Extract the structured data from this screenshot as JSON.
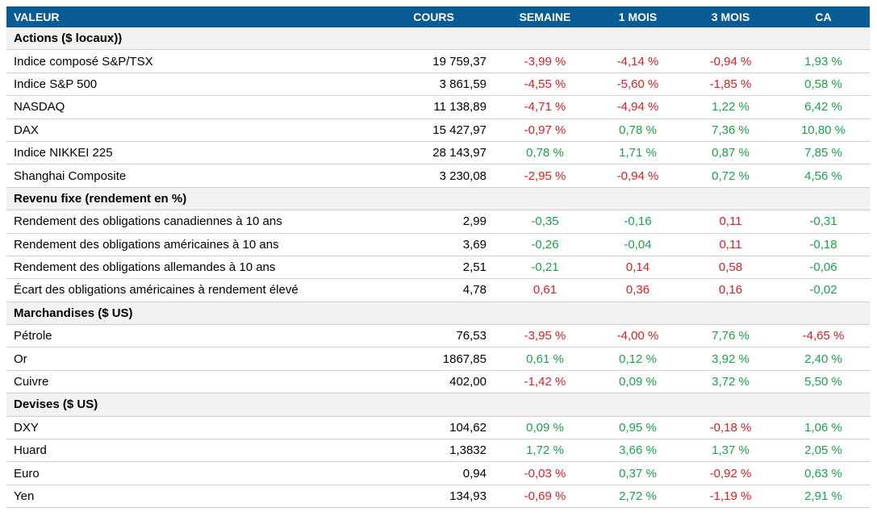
{
  "header": [
    "VALEUR",
    "COURS",
    "SEMAINE",
    "1 MOIS",
    "3 MOIS",
    "CA"
  ],
  "sections": [
    {
      "title": "Actions ($ locaux))",
      "positive_color": "#1aa34a",
      "negative_color": "#e31b23",
      "rows": [
        [
          "Indice composé S&P/TSX",
          "19 759,37",
          "-3,99 %",
          "-4,14 %",
          "-0,94 %",
          "1,93 %"
        ],
        [
          "Indice S&P 500",
          "3 861,59",
          "-4,55 %",
          "-5,60 %",
          "-1,85 %",
          "0,58 %"
        ],
        [
          "NASDAQ",
          "11 138,89",
          "-4,71 %",
          "-4,94 %",
          "1,22 %",
          "6,42 %"
        ],
        [
          "DAX",
          "15 427,97",
          "-0,97 %",
          "0,78 %",
          "7,36 %",
          "10,80 %"
        ],
        [
          "Indice NIKKEI 225",
          "28 143,97",
          "0,78 %",
          "1,71 %",
          "0,87 %",
          "7,85 %"
        ],
        [
          "Shanghai Composite",
          "3 230,08",
          "-2,95 %",
          "-0,94 %",
          "0,72 %",
          "4,56 %"
        ]
      ]
    },
    {
      "title": "Revenu fixe (rendement en %)",
      "positive_color": "#e31b23",
      "negative_color": "#1aa34a",
      "rows": [
        [
          "Rendement des obligations canadiennes à 10 ans",
          "2,99",
          "-0,35",
          "-0,16",
          "0,11",
          "-0,31"
        ],
        [
          "Rendement des obligations américaines à 10 ans",
          "3,69",
          "-0,26",
          "-0,04",
          "0,11",
          "-0,18"
        ],
        [
          "Rendement des obligations allemandes à 10 ans",
          "2,51",
          "-0,21",
          "0,14",
          "0,58",
          "-0,06"
        ],
        [
          "Écart des obligations américaines à rendement élevé",
          "4,78",
          "0,61",
          "0,36",
          "0,16",
          "-0,02"
        ]
      ]
    },
    {
      "title": "Marchandises ($ US)",
      "positive_color": "#1aa34a",
      "negative_color": "#e31b23",
      "rows": [
        [
          "Pétrole",
          "76,53",
          "-3,95 %",
          "-4,00 %",
          "7,76 %",
          "-4,65 %"
        ],
        [
          "Or",
          "1867,85",
          "0,61 %",
          "0,12 %",
          "3,92 %",
          "2,40 %"
        ],
        [
          "Cuivre",
          "402,00",
          "-1,42 %",
          "0,09 %",
          "3,72 %",
          "5,50 %"
        ]
      ]
    },
    {
      "title": "Devises ($ US)",
      "positive_color": "#1aa34a",
      "negative_color": "#e31b23",
      "rows": [
        [
          "DXY",
          "104,62",
          "0,09 %",
          "0,95 %",
          "-0,18 %",
          "1,06 %"
        ],
        [
          "Huard",
          "1,3832",
          "1,72 %",
          "3,66 %",
          "1,37 %",
          "2,05 %"
        ],
        [
          "Euro",
          "0,94",
          "-0,03 %",
          "0,37 %",
          "-0,92 %",
          "0,63 %"
        ],
        [
          "Yen",
          "134,93",
          "-0,69 %",
          "2,72 %",
          "-1,19 %",
          "2,91 %"
        ]
      ]
    }
  ]
}
